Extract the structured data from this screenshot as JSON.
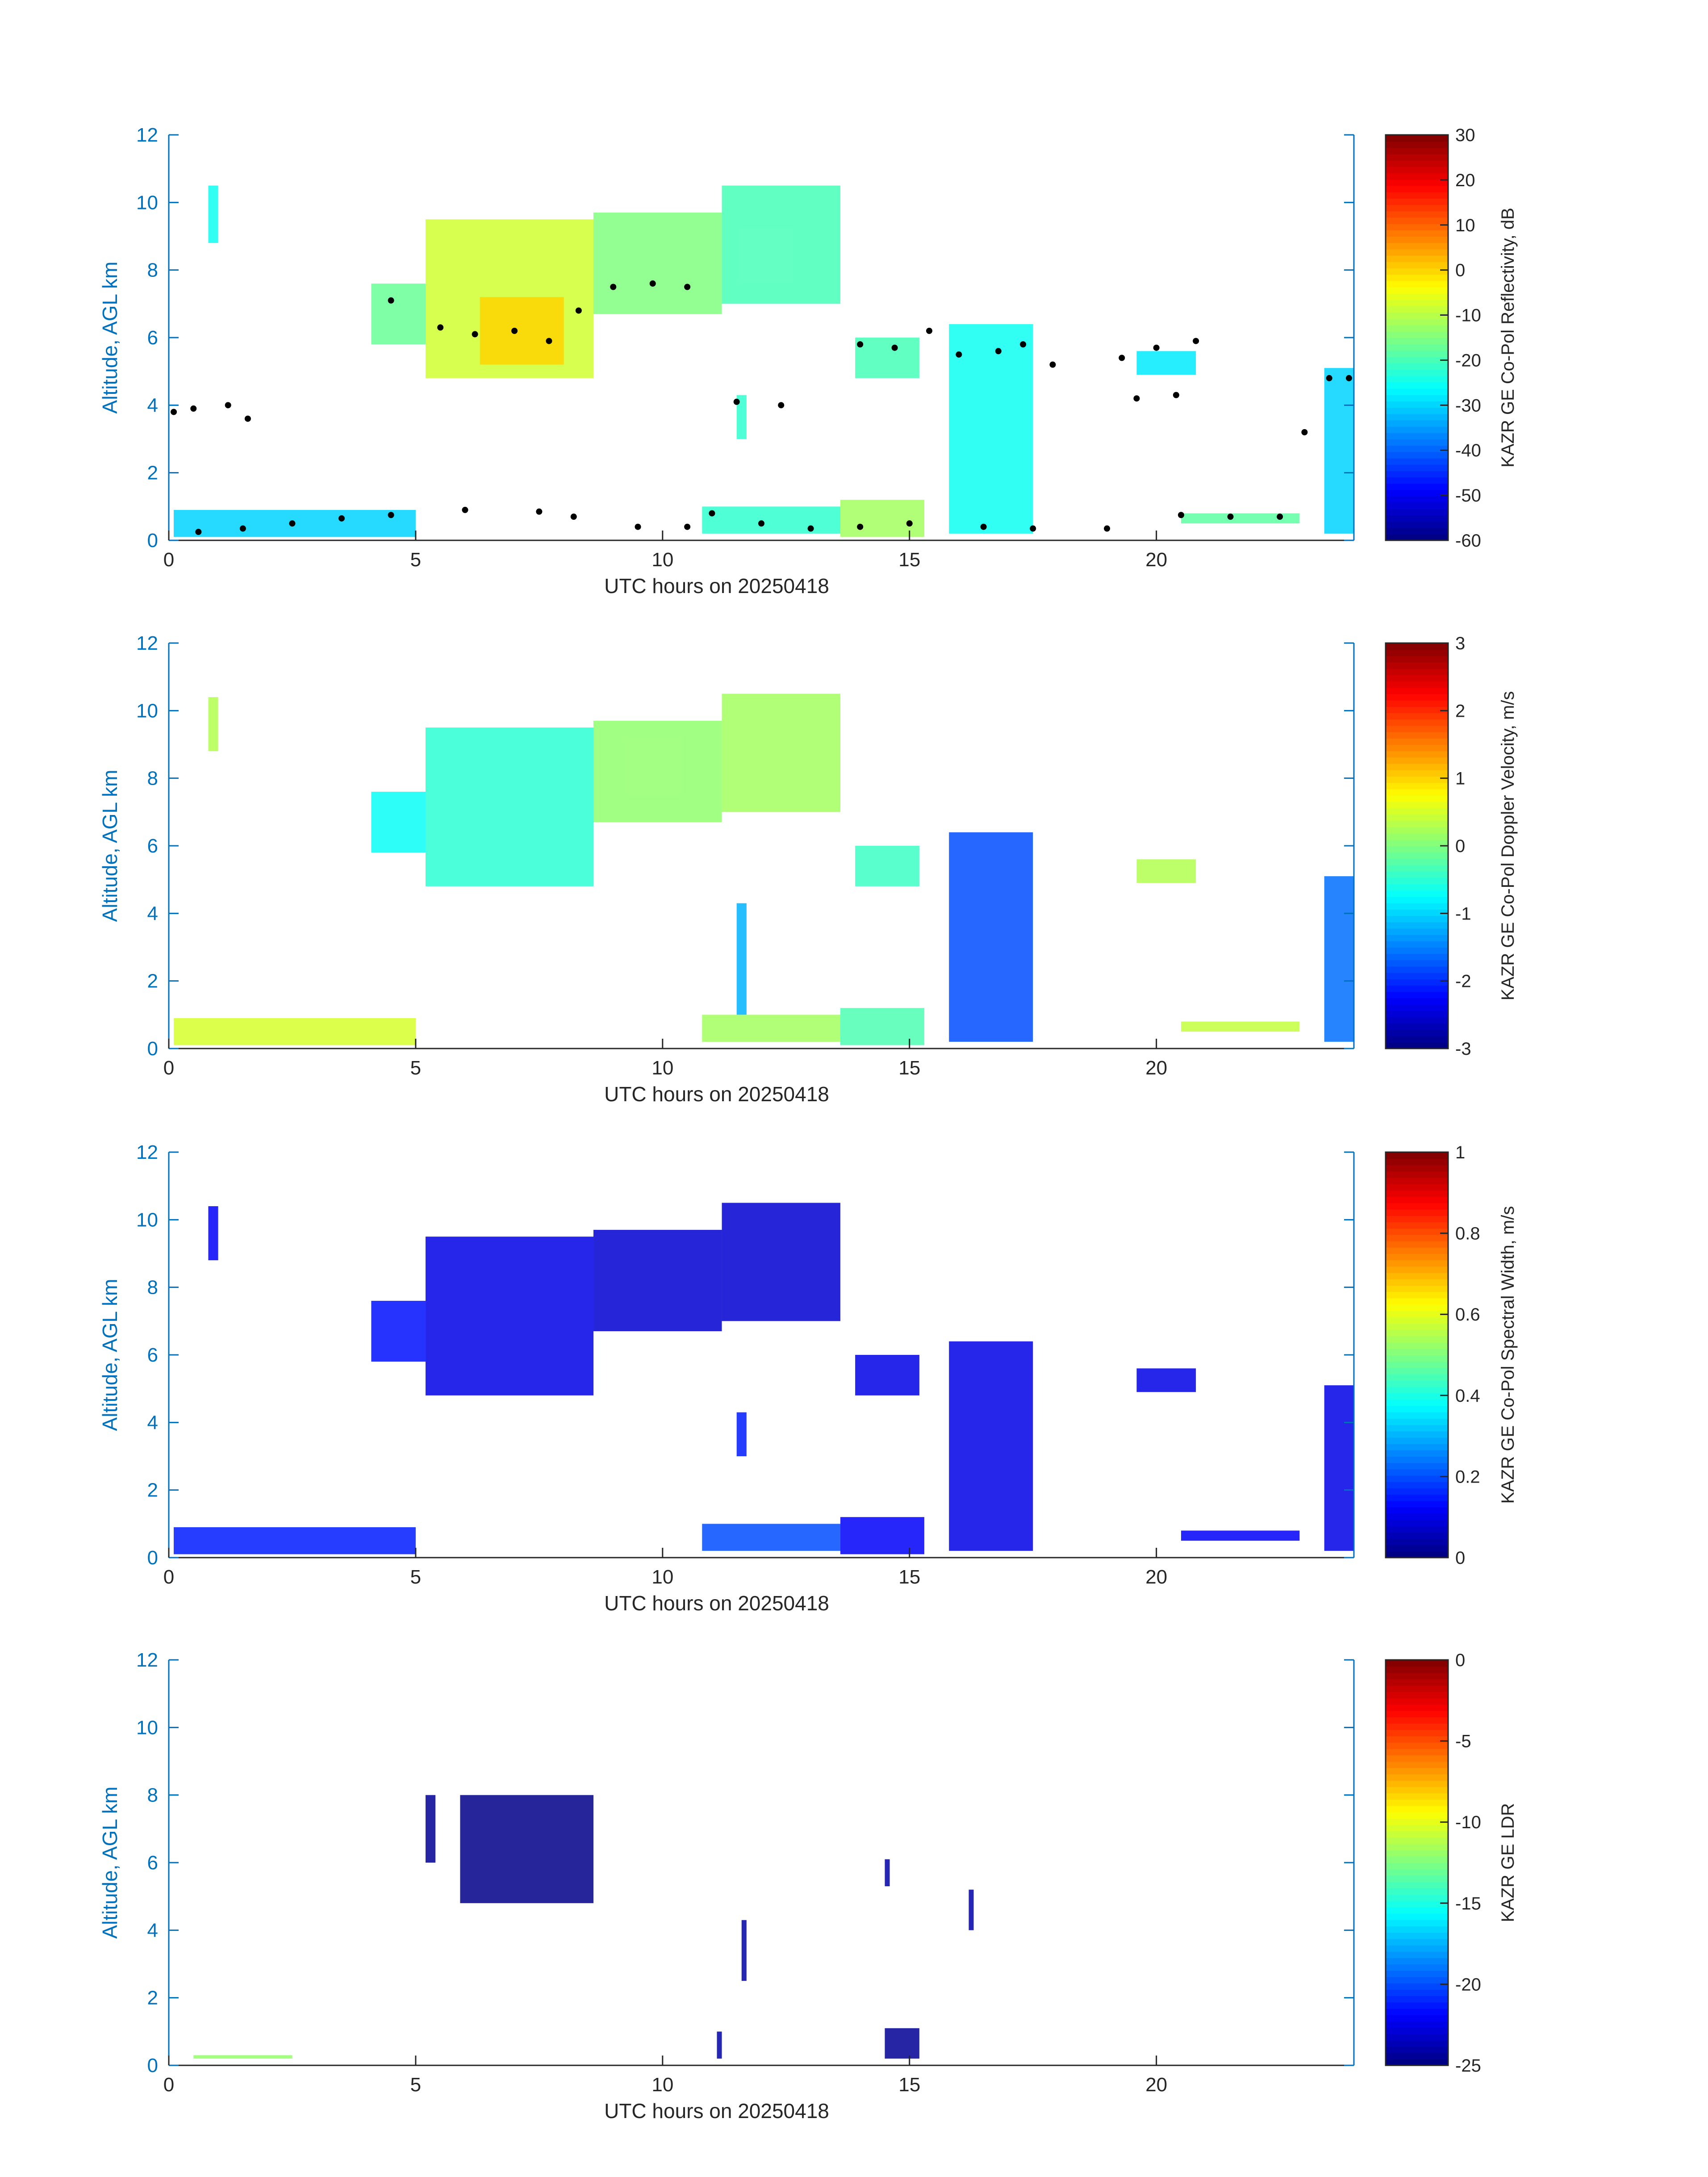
{
  "colors": {
    "axis_y": "#0072BD",
    "axis_x": "#262626",
    "echo_black": "#000000",
    "colormap": "jet"
  },
  "chart_data": [
    {
      "type": "heatmap",
      "title": "",
      "xlabel": "UTC hours on 20250418",
      "ylabel": "Altitude, AGL km",
      "xlim": [
        0,
        24
      ],
      "ylim": [
        0,
        12
      ],
      "xticks": [
        "0",
        "5",
        "10",
        "15",
        "20"
      ],
      "yticks": [
        "0",
        "2",
        "4",
        "6",
        "8",
        "10",
        "12"
      ],
      "colorbar": {
        "label": "KAZR GE Co-Pol Reflectivity, dB",
        "range": [
          -60,
          30
        ],
        "ticks": [
          "30",
          "20",
          "10",
          "0",
          "-10",
          "-20",
          "-30",
          "-40",
          "-50",
          "-60"
        ]
      },
      "regions": [
        {
          "x": [
            0.8,
            1.0
          ],
          "y": [
            8.8,
            10.5
          ],
          "value": -25
        },
        {
          "x": [
            4.1,
            5.2
          ],
          "y": [
            5.8,
            7.6
          ],
          "value": -17
        },
        {
          "x": [
            5.2,
            8.6
          ],
          "y": [
            4.8,
            9.5
          ],
          "value": -8
        },
        {
          "x": [
            6.3,
            8.0
          ],
          "y": [
            5.2,
            7.2
          ],
          "value": 0
        },
        {
          "x": [
            8.6,
            11.2
          ],
          "y": [
            6.7,
            9.7
          ],
          "value": -15
        },
        {
          "x": [
            11.2,
            13.6
          ],
          "y": [
            7.0,
            10.5
          ],
          "value": -20
        },
        {
          "x": [
            0.1,
            5.0
          ],
          "y": [
            0.1,
            0.9
          ],
          "value": -30
        },
        {
          "x": [
            10.8,
            13.6
          ],
          "y": [
            0.2,
            1.0
          ],
          "value": -22
        },
        {
          "x": [
            13.6,
            15.3
          ],
          "y": [
            0.1,
            1.2
          ],
          "value": -12
        },
        {
          "x": [
            13.9,
            15.2
          ],
          "y": [
            4.8,
            6.0
          ],
          "value": -20
        },
        {
          "x": [
            15.8,
            17.5
          ],
          "y": [
            0.2,
            6.4
          ],
          "value": -25
        },
        {
          "x": [
            19.6,
            20.8
          ],
          "y": [
            4.9,
            5.6
          ],
          "value": -28
        },
        {
          "x": [
            20.5,
            22.9
          ],
          "y": [
            0.5,
            0.8
          ],
          "value": -18
        },
        {
          "x": [
            23.4,
            24.0
          ],
          "y": [
            0.2,
            5.1
          ],
          "value": -30
        },
        {
          "x": [
            11.5,
            11.7
          ],
          "y": [
            3.0,
            4.3
          ],
          "value": -22
        }
      ],
      "echo_tops": [
        {
          "x": 0.1,
          "y": 3.8
        },
        {
          "x": 0.5,
          "y": 3.9
        },
        {
          "x": 1.2,
          "y": 4.0
        },
        {
          "x": 1.6,
          "y": 3.6
        },
        {
          "x": 4.5,
          "y": 7.1
        },
        {
          "x": 5.5,
          "y": 6.3
        },
        {
          "x": 6.2,
          "y": 6.1
        },
        {
          "x": 7.0,
          "y": 6.2
        },
        {
          "x": 7.7,
          "y": 5.9
        },
        {
          "x": 8.3,
          "y": 6.8
        },
        {
          "x": 9.0,
          "y": 7.5
        },
        {
          "x": 9.8,
          "y": 7.6
        },
        {
          "x": 10.5,
          "y": 7.5
        },
        {
          "x": 11.5,
          "y": 4.1
        },
        {
          "x": 12.4,
          "y": 4.0
        },
        {
          "x": 14.0,
          "y": 5.8
        },
        {
          "x": 14.7,
          "y": 5.7
        },
        {
          "x": 15.4,
          "y": 6.2
        },
        {
          "x": 16.0,
          "y": 5.5
        },
        {
          "x": 16.8,
          "y": 5.6
        },
        {
          "x": 17.3,
          "y": 5.8
        },
        {
          "x": 17.9,
          "y": 5.2
        },
        {
          "x": 19.3,
          "y": 5.4
        },
        {
          "x": 20.0,
          "y": 5.7
        },
        {
          "x": 20.8,
          "y": 5.9
        },
        {
          "x": 19.6,
          "y": 4.2
        },
        {
          "x": 20.4,
          "y": 4.3
        },
        {
          "x": 23.0,
          "y": 3.2
        },
        {
          "x": 23.5,
          "y": 4.8
        },
        {
          "x": 23.9,
          "y": 4.8
        }
      ],
      "cloud_base": [
        {
          "x": 0.6,
          "y": 0.25
        },
        {
          "x": 1.5,
          "y": 0.35
        },
        {
          "x": 2.5,
          "y": 0.5
        },
        {
          "x": 3.5,
          "y": 0.65
        },
        {
          "x": 4.5,
          "y": 0.75
        },
        {
          "x": 6.0,
          "y": 0.9
        },
        {
          "x": 7.5,
          "y": 0.85
        },
        {
          "x": 8.2,
          "y": 0.7
        },
        {
          "x": 9.5,
          "y": 0.4
        },
        {
          "x": 10.5,
          "y": 0.4
        },
        {
          "x": 11.0,
          "y": 0.8
        },
        {
          "x": 12.0,
          "y": 0.5
        },
        {
          "x": 13.0,
          "y": 0.35
        },
        {
          "x": 14.0,
          "y": 0.4
        },
        {
          "x": 15.0,
          "y": 0.5
        },
        {
          "x": 16.5,
          "y": 0.4
        },
        {
          "x": 17.5,
          "y": 0.35
        },
        {
          "x": 19.0,
          "y": 0.35
        },
        {
          "x": 20.5,
          "y": 0.75
        },
        {
          "x": 21.5,
          "y": 0.7
        },
        {
          "x": 22.5,
          "y": 0.7
        }
      ]
    },
    {
      "type": "heatmap",
      "title": "",
      "xlabel": "UTC hours on 20250418",
      "ylabel": "Altitude, AGL km",
      "xlim": [
        0,
        24
      ],
      "ylim": [
        0,
        12
      ],
      "xticks": [
        "0",
        "5",
        "10",
        "15",
        "20"
      ],
      "yticks": [
        "0",
        "2",
        "4",
        "6",
        "8",
        "10",
        "12"
      ],
      "colorbar": {
        "label": "KAZR GE Co-Pol Doppler Velocity, m/s",
        "range": [
          -3,
          3
        ],
        "ticks": [
          "3",
          "2",
          "1",
          "0",
          "-1",
          "-2",
          "-3"
        ]
      },
      "regions": [
        {
          "x": [
            0.8,
            1.0
          ],
          "y": [
            8.8,
            10.4
          ],
          "value": 0.3
        },
        {
          "x": [
            4.1,
            5.2
          ],
          "y": [
            5.8,
            7.6
          ],
          "value": -0.7
        },
        {
          "x": [
            5.2,
            8.6
          ],
          "y": [
            4.8,
            9.5
          ],
          "value": -0.5
        },
        {
          "x": [
            8.6,
            11.2
          ],
          "y": [
            6.7,
            9.7
          ],
          "value": 0.1
        },
        {
          "x": [
            11.2,
            13.6
          ],
          "y": [
            7.0,
            10.5
          ],
          "value": 0.2
        },
        {
          "x": [
            0.1,
            5.0
          ],
          "y": [
            0.1,
            0.9
          ],
          "value": 0.5
        },
        {
          "x": [
            10.8,
            13.6
          ],
          "y": [
            0.2,
            1.0
          ],
          "value": 0.2
        },
        {
          "x": [
            13.6,
            15.3
          ],
          "y": [
            0.1,
            1.2
          ],
          "value": -0.3
        },
        {
          "x": [
            13.9,
            15.2
          ],
          "y": [
            4.8,
            6.0
          ],
          "value": -0.4
        },
        {
          "x": [
            15.8,
            17.5
          ],
          "y": [
            0.2,
            6.4
          ],
          "value": -1.8
        },
        {
          "x": [
            19.6,
            20.8
          ],
          "y": [
            4.9,
            5.6
          ],
          "value": 0.3
        },
        {
          "x": [
            20.5,
            22.9
          ],
          "y": [
            0.5,
            0.8
          ],
          "value": 0.4
        },
        {
          "x": [
            23.4,
            24.0
          ],
          "y": [
            0.2,
            5.1
          ],
          "value": -1.6
        },
        {
          "x": [
            11.5,
            11.7
          ],
          "y": [
            1.0,
            4.3
          ],
          "value": -1.2
        }
      ]
    },
    {
      "type": "heatmap",
      "title": "",
      "xlabel": "UTC hours on 20250418",
      "ylabel": "Altitude, AGL km",
      "xlim": [
        0,
        24
      ],
      "ylim": [
        0,
        12
      ],
      "xticks": [
        "0",
        "5",
        "10",
        "15",
        "20"
      ],
      "yticks": [
        "0",
        "2",
        "4",
        "6",
        "8",
        "10",
        "12"
      ],
      "colorbar": {
        "label": "KAZR GE Co-Pol Spectral Width, m/s",
        "range": [
          0,
          1
        ],
        "ticks": [
          "1",
          "0.8",
          "0.6",
          "0.4",
          "0.2",
          "0"
        ]
      },
      "regions": [
        {
          "x": [
            0.8,
            1.0
          ],
          "y": [
            8.8,
            10.4
          ],
          "value": 0.12
        },
        {
          "x": [
            4.1,
            5.2
          ],
          "y": [
            5.8,
            7.6
          ],
          "value": 0.14
        },
        {
          "x": [
            5.2,
            8.6
          ],
          "y": [
            4.8,
            9.5
          ],
          "value": 0.1
        },
        {
          "x": [
            8.6,
            11.2
          ],
          "y": [
            6.7,
            9.7
          ],
          "value": 0.08
        },
        {
          "x": [
            11.2,
            13.6
          ],
          "y": [
            7.0,
            10.5
          ],
          "value": 0.08
        },
        {
          "x": [
            0.1,
            5.0
          ],
          "y": [
            0.1,
            0.9
          ],
          "value": 0.15
        },
        {
          "x": [
            10.8,
            13.6
          ],
          "y": [
            0.2,
            1.0
          ],
          "value": 0.2
        },
        {
          "x": [
            13.6,
            15.3
          ],
          "y": [
            0.1,
            1.2
          ],
          "value": 0.12
        },
        {
          "x": [
            13.9,
            15.2
          ],
          "y": [
            4.8,
            6.0
          ],
          "value": 0.1
        },
        {
          "x": [
            15.8,
            17.5
          ],
          "y": [
            0.2,
            6.4
          ],
          "value": 0.1
        },
        {
          "x": [
            19.6,
            20.8
          ],
          "y": [
            4.9,
            5.6
          ],
          "value": 0.1
        },
        {
          "x": [
            20.5,
            22.9
          ],
          "y": [
            0.5,
            0.8
          ],
          "value": 0.12
        },
        {
          "x": [
            23.4,
            24.0
          ],
          "y": [
            0.2,
            5.1
          ],
          "value": 0.1
        },
        {
          "x": [
            11.5,
            11.7
          ],
          "y": [
            3.0,
            4.3
          ],
          "value": 0.15
        }
      ]
    },
    {
      "type": "heatmap",
      "title": "",
      "xlabel": "UTC hours on 20250418",
      "ylabel": "Altitude, AGL km",
      "xlim": [
        0,
        24
      ],
      "ylim": [
        0,
        12
      ],
      "xticks": [
        "0",
        "5",
        "10",
        "15",
        "20"
      ],
      "yticks": [
        "0",
        "2",
        "4",
        "6",
        "8",
        "10",
        "12"
      ],
      "colorbar": {
        "label": "KAZR GE LDR",
        "range": [
          -25,
          0
        ],
        "ticks": [
          "0",
          "-5",
          "-10",
          "-15",
          "-20",
          "-25"
        ]
      },
      "regions": [
        {
          "x": [
            5.2,
            5.4
          ],
          "y": [
            6.0,
            8.0
          ],
          "value": -24.5
        },
        {
          "x": [
            5.9,
            8.6
          ],
          "y": [
            4.8,
            8.0
          ],
          "value": -24.8
        },
        {
          "x": [
            11.1,
            11.2
          ],
          "y": [
            0.2,
            1.0
          ],
          "value": -24
        },
        {
          "x": [
            11.6,
            11.7
          ],
          "y": [
            2.5,
            4.3
          ],
          "value": -24
        },
        {
          "x": [
            14.5,
            15.2
          ],
          "y": [
            0.2,
            1.1
          ],
          "value": -24.5
        },
        {
          "x": [
            14.5,
            14.6
          ],
          "y": [
            5.3,
            6.1
          ],
          "value": -24
        },
        {
          "x": [
            16.2,
            16.3
          ],
          "y": [
            4.0,
            5.2
          ],
          "value": -24
        },
        {
          "x": [
            0.5,
            2.5
          ],
          "y": [
            0.2,
            0.3
          ],
          "value": -12
        }
      ]
    }
  ]
}
